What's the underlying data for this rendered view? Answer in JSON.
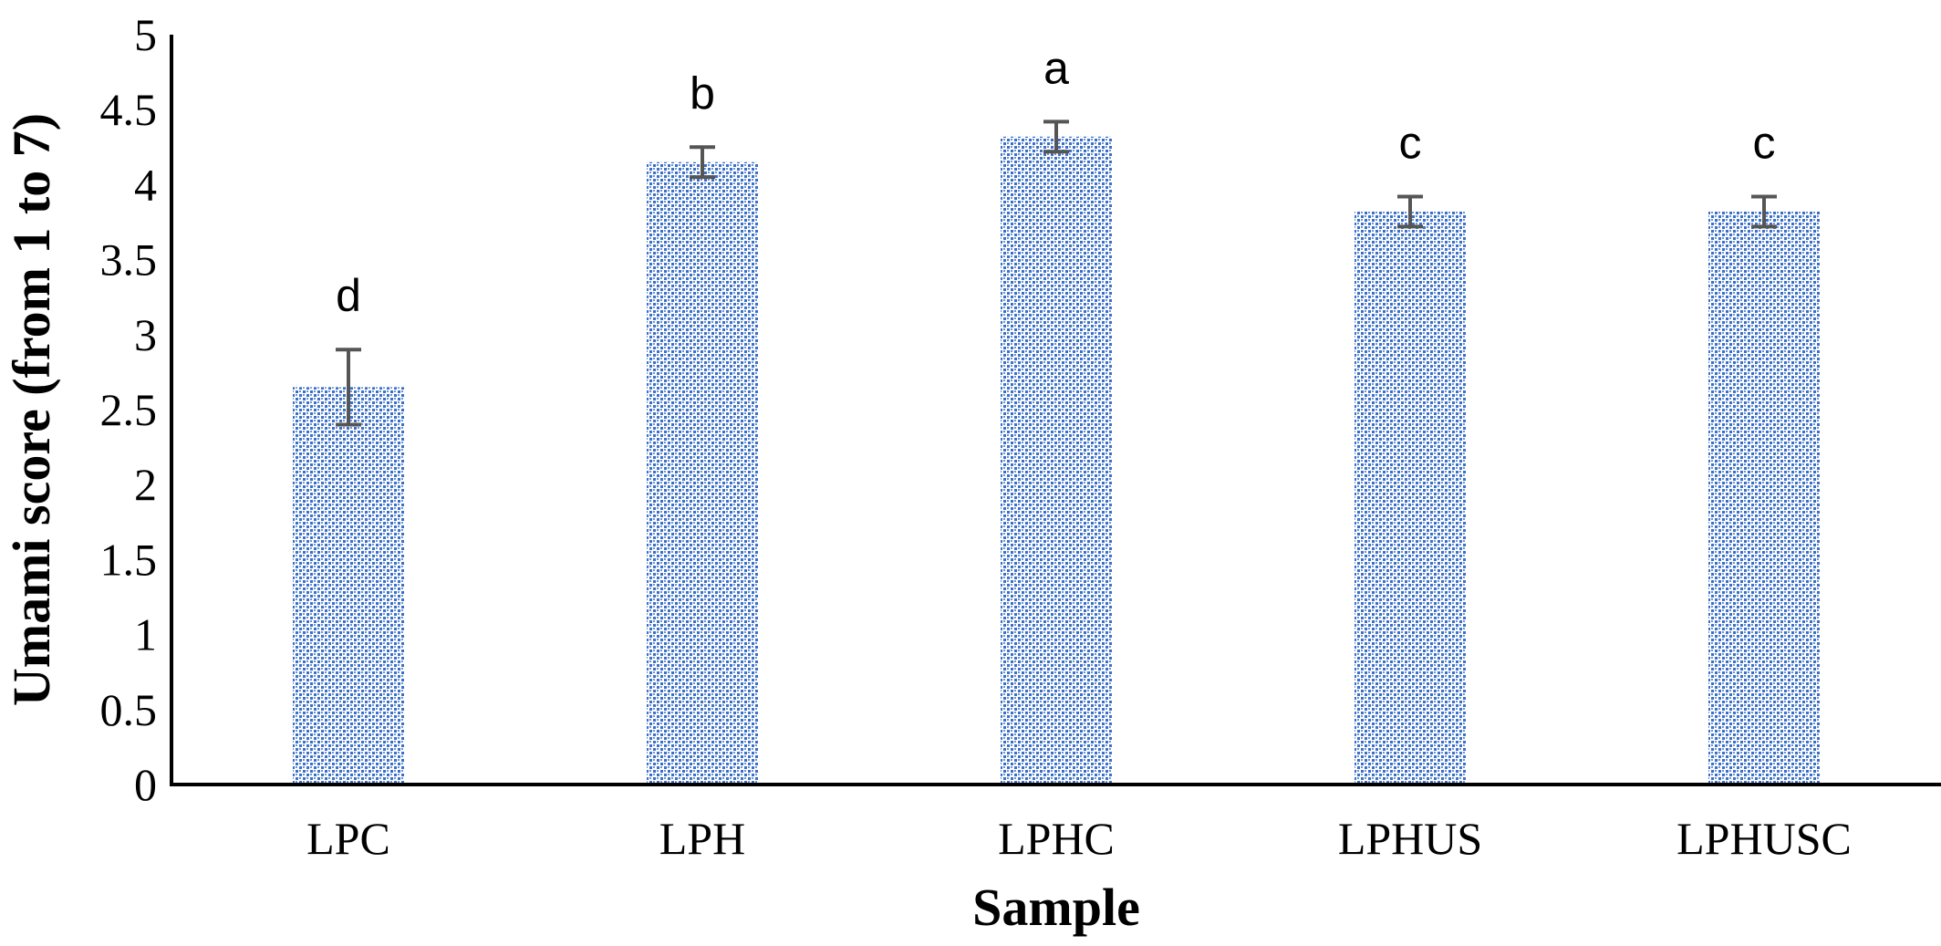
{
  "chart_data": {
    "type": "bar",
    "categories": [
      "LPC",
      "LPH",
      "LPHC",
      "LPHUS",
      "LPHUSC"
    ],
    "values": [
      2.65,
      4.15,
      4.32,
      3.82,
      3.82
    ],
    "errors": [
      0.25,
      0.1,
      0.1,
      0.1,
      0.1
    ],
    "significance_labels": [
      "d",
      "b",
      "a",
      "c",
      "c"
    ],
    "xlabel": "Sample",
    "ylabel": "Umami score (from 1 to 7)",
    "ylim": [
      0,
      5
    ],
    "yticks": [
      0,
      0.5,
      1,
      1.5,
      2,
      2.5,
      3,
      3.5,
      4,
      4.5,
      5
    ],
    "ytick_labels": [
      "0",
      "0.5",
      "1",
      "1.5",
      "2",
      "2.5",
      "3",
      "3.5",
      "4",
      "4.5",
      "5"
    ],
    "grid": false,
    "legend": "none",
    "bar_fill": "#3a6fc7",
    "bar_fill_light": "#ffffff",
    "error_bar_color": "#555555",
    "axis_color": "#000000"
  }
}
